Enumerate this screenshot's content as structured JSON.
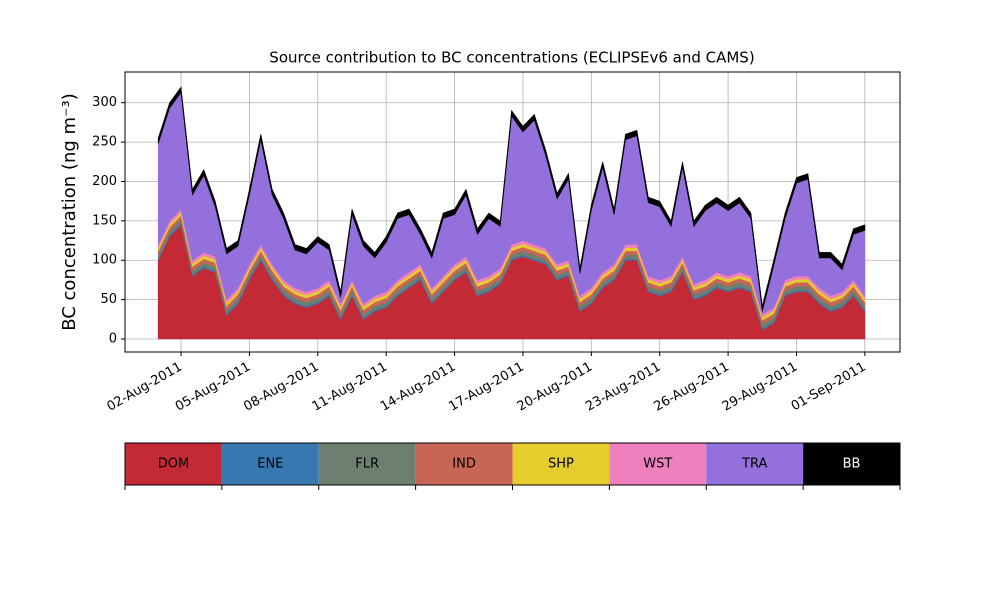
{
  "chart_data": {
    "type": "stacked_area",
    "title": "Source contribution to BC concentrations (ECLIPSEv6 and CAMS)",
    "ylabel": "BC concentration (ng m⁻³)",
    "x": [
      "2011-08-01T00:00",
      "2011-08-01T12:00",
      "2011-08-02T00:00",
      "2011-08-02T12:00",
      "2011-08-03T00:00",
      "2011-08-03T12:00",
      "2011-08-04T00:00",
      "2011-08-04T12:00",
      "2011-08-05T00:00",
      "2011-08-05T12:00",
      "2011-08-06T00:00",
      "2011-08-06T12:00",
      "2011-08-07T00:00",
      "2011-08-07T12:00",
      "2011-08-08T00:00",
      "2011-08-08T12:00",
      "2011-08-09T00:00",
      "2011-08-09T12:00",
      "2011-08-10T00:00",
      "2011-08-10T12:00",
      "2011-08-11T00:00",
      "2011-08-11T12:00",
      "2011-08-12T00:00",
      "2011-08-12T12:00",
      "2011-08-13T00:00",
      "2011-08-13T12:00",
      "2011-08-14T00:00",
      "2011-08-14T12:00",
      "2011-08-15T00:00",
      "2011-08-15T12:00",
      "2011-08-16T00:00",
      "2011-08-16T12:00",
      "2011-08-17T00:00",
      "2011-08-17T12:00",
      "2011-08-18T00:00",
      "2011-08-18T12:00",
      "2011-08-19T00:00",
      "2011-08-19T12:00",
      "2011-08-20T00:00",
      "2011-08-20T12:00",
      "2011-08-21T00:00",
      "2011-08-21T12:00",
      "2011-08-22T00:00",
      "2011-08-22T12:00",
      "2011-08-23T00:00",
      "2011-08-23T12:00",
      "2011-08-24T00:00",
      "2011-08-24T12:00",
      "2011-08-25T00:00",
      "2011-08-25T12:00",
      "2011-08-26T00:00",
      "2011-08-26T12:00",
      "2011-08-27T00:00",
      "2011-08-27T12:00",
      "2011-08-28T00:00",
      "2011-08-28T12:00",
      "2011-08-29T00:00",
      "2011-08-29T12:00",
      "2011-08-30T00:00",
      "2011-08-30T12:00",
      "2011-08-31T00:00",
      "2011-08-31T12:00",
      "2011-09-01T00:00"
    ],
    "series": [
      {
        "name": "DOM",
        "color": "#c42a35",
        "values": [
          100,
          130,
          145,
          80,
          90,
          85,
          30,
          45,
          75,
          100,
          75,
          55,
          45,
          40,
          45,
          55,
          25,
          55,
          25,
          35,
          40,
          55,
          65,
          75,
          45,
          60,
          75,
          85,
          55,
          60,
          70,
          100,
          105,
          100,
          95,
          75,
          80,
          35,
          45,
          65,
          75,
          100,
          100,
          60,
          55,
          60,
          85,
          50,
          55,
          65,
          60,
          65,
          60,
          12,
          20,
          55,
          60,
          60,
          45,
          35,
          40,
          55,
          35
        ]
      },
      {
        "name": "ENE",
        "color": "#3778b0",
        "values": [
          2,
          2,
          2,
          2,
          2,
          2,
          2,
          2,
          2,
          2,
          2,
          2,
          2,
          2,
          2,
          2,
          2,
          2,
          2,
          2,
          2,
          2,
          2,
          2,
          2,
          2,
          2,
          2,
          2,
          2,
          2,
          2,
          2,
          2,
          2,
          2,
          2,
          2,
          2,
          2,
          2,
          2,
          2,
          2,
          2,
          2,
          2,
          2,
          2,
          2,
          2,
          2,
          2,
          2,
          2,
          2,
          2,
          2,
          2,
          2,
          2,
          2,
          2
        ]
      },
      {
        "name": "FLR",
        "color": "#6d7f70",
        "values": [
          5,
          5,
          5,
          5,
          5,
          5,
          5,
          5,
          5,
          5,
          5,
          5,
          5,
          5,
          5,
          5,
          5,
          5,
          5,
          5,
          5,
          5,
          5,
          5,
          5,
          5,
          5,
          5,
          5,
          5,
          5,
          5,
          5,
          5,
          5,
          5,
          5,
          5,
          5,
          5,
          5,
          5,
          5,
          5,
          5,
          5,
          5,
          5,
          5,
          5,
          5,
          5,
          5,
          5,
          5,
          5,
          5,
          5,
          5,
          5,
          5,
          5,
          5
        ]
      },
      {
        "name": "IND",
        "color": "#c96555",
        "values": [
          5,
          5,
          5,
          5,
          5,
          5,
          5,
          5,
          5,
          5,
          5,
          5,
          5,
          5,
          5,
          5,
          5,
          5,
          5,
          5,
          5,
          5,
          5,
          5,
          5,
          5,
          5,
          5,
          5,
          5,
          5,
          5,
          5,
          5,
          5,
          5,
          5,
          5,
          5,
          5,
          5,
          5,
          5,
          5,
          5,
          5,
          5,
          5,
          5,
          5,
          5,
          5,
          5,
          5,
          5,
          5,
          5,
          5,
          5,
          5,
          5,
          5,
          5
        ]
      },
      {
        "name": "SHP",
        "color": "#e6cd2e",
        "values": [
          4,
          4,
          4,
          4,
          4,
          4,
          4,
          4,
          4,
          4,
          4,
          4,
          4,
          4,
          4,
          4,
          4,
          4,
          4,
          4,
          4,
          4,
          4,
          4,
          4,
          4,
          4,
          4,
          4,
          4,
          4,
          4,
          4,
          4,
          4,
          4,
          4,
          4,
          4,
          4,
          4,
          4,
          4,
          4,
          4,
          4,
          4,
          4,
          4,
          4,
          4,
          4,
          4,
          4,
          4,
          4,
          4,
          4,
          4,
          4,
          4,
          4,
          4
        ]
      },
      {
        "name": "WST",
        "color": "#f07fbd",
        "values": [
          4,
          4,
          4,
          4,
          4,
          4,
          4,
          4,
          4,
          4,
          4,
          4,
          4,
          4,
          4,
          4,
          4,
          4,
          4,
          4,
          4,
          4,
          4,
          4,
          4,
          4,
          4,
          4,
          4,
          4,
          4,
          4,
          4,
          4,
          4,
          4,
          4,
          4,
          4,
          4,
          4,
          4,
          4,
          4,
          4,
          4,
          4,
          4,
          4,
          4,
          4,
          4,
          4,
          4,
          4,
          4,
          4,
          4,
          4,
          4,
          4,
          4,
          4
        ]
      },
      {
        "name": "TRA",
        "color": "#9370db",
        "values": [
          128,
          143,
          148,
          83,
          98,
          63,
          58,
          53,
          88,
          133,
          88,
          78,
          48,
          48,
          58,
          38,
          8,
          83,
          73,
          48,
          63,
          78,
          73,
          38,
          38,
          73,
          63,
          78,
          58,
          73,
          53,
          163,
          138,
          158,
          118,
          83,
          103,
          28,
          98,
          133,
          63,
          133,
          138,
          93,
          93,
          63,
          113,
          73,
          88,
          88,
          83,
          88,
          73,
          3,
          53,
          78,
          118,
          123,
          38,
          48,
          28,
          58,
          83
        ]
      },
      {
        "name": "BB",
        "color": "#000000",
        "values": [
          7,
          7,
          7,
          7,
          7,
          7,
          7,
          7,
          7,
          7,
          7,
          7,
          7,
          7,
          7,
          7,
          7,
          7,
          7,
          7,
          7,
          7,
          7,
          7,
          7,
          7,
          7,
          7,
          7,
          7,
          7,
          7,
          7,
          7,
          7,
          7,
          7,
          7,
          7,
          7,
          7,
          7,
          7,
          7,
          7,
          7,
          7,
          7,
          7,
          7,
          7,
          7,
          7,
          7,
          7,
          7,
          7,
          7,
          7,
          7,
          7,
          7,
          7
        ]
      }
    ],
    "xlim": [
      "2011-07-30T13:00",
      "2011-09-02T13:00"
    ],
    "xticks": [
      {
        "value": "2011-08-02T00:00",
        "label": "02-Aug-2011"
      },
      {
        "value": "2011-08-05T00:00",
        "label": "05-Aug-2011"
      },
      {
        "value": "2011-08-08T00:00",
        "label": "08-Aug-2011"
      },
      {
        "value": "2011-08-11T00:00",
        "label": "11-Aug-2011"
      },
      {
        "value": "2011-08-14T00:00",
        "label": "14-Aug-2011"
      },
      {
        "value": "2011-08-17T00:00",
        "label": "17-Aug-2011"
      },
      {
        "value": "2011-08-20T00:00",
        "label": "20-Aug-2011"
      },
      {
        "value": "2011-08-23T00:00",
        "label": "23-Aug-2011"
      },
      {
        "value": "2011-08-26T00:00",
        "label": "26-Aug-2011"
      },
      {
        "value": "2011-08-29T00:00",
        "label": "29-Aug-2011"
      },
      {
        "value": "2011-09-01T00:00",
        "label": "01-Sep-2011"
      }
    ],
    "ylim": [
      -16.5,
      339
    ],
    "yticks": [
      0,
      50,
      100,
      150,
      200,
      250,
      300
    ],
    "grid": true,
    "legend": "bottom"
  }
}
